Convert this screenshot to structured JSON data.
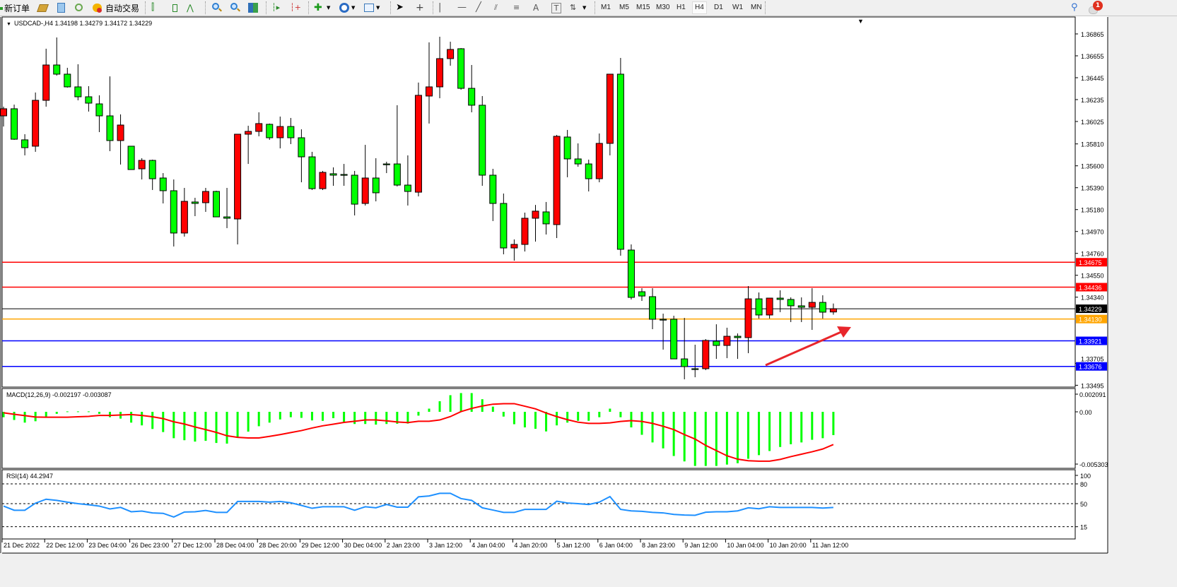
{
  "toolbar": {
    "new_order_label": "新订单",
    "auto_trading_label": "自动交易",
    "timeframes": [
      "M1",
      "M5",
      "M15",
      "M30",
      "H1",
      "H4",
      "D1",
      "W1",
      "MN"
    ],
    "active_timeframe": "H4",
    "notification_count": "1"
  },
  "chart": {
    "header": "USDCAD-,H4  1.34198 1.34279 1.34172 1.34229",
    "colors": {
      "up": "#ff0000",
      "down": "#00ff00",
      "outline": "#000000",
      "background": "#ffffff"
    },
    "price_ticks": [
      "1.36865",
      "1.36655",
      "1.36445",
      "1.36235",
      "1.36025",
      "1.35810",
      "1.35600",
      "1.35390",
      "1.35180",
      "1.34970",
      "1.34760",
      "1.34550",
      "1.34340",
      "1.33705",
      "1.33495"
    ],
    "levels": [
      {
        "price": 1.34675,
        "label": "1.34675",
        "color": "#ff0000"
      },
      {
        "price": 1.34436,
        "label": "1.34436",
        "color": "#ff0000"
      },
      {
        "price": 1.34229,
        "label": "1.34229",
        "color": "#000000"
      },
      {
        "price": 1.3413,
        "label": "1.34130",
        "color": "#ffa500"
      },
      {
        "price": 1.33921,
        "label": "1.33921",
        "color": "#0000ff"
      },
      {
        "price": 1.33676,
        "label": "1.33676",
        "color": "#0000ff"
      }
    ],
    "arrow_color": "#e8262b",
    "candles_ohlc": [
      [
        1.36079,
        1.36167,
        1.35977,
        1.36147
      ],
      [
        1.36147,
        1.36187,
        1.35849,
        1.35855
      ],
      [
        1.35849,
        1.35903,
        1.357,
        1.35774
      ],
      [
        1.35788,
        1.36303,
        1.35734,
        1.36228
      ],
      [
        1.36228,
        1.36723,
        1.36167,
        1.36567
      ],
      [
        1.36567,
        1.36831,
        1.36465,
        1.36479
      ],
      [
        1.36479,
        1.3654,
        1.3635,
        1.36357
      ],
      [
        1.36357,
        1.36574,
        1.36228,
        1.36262
      ],
      [
        1.36262,
        1.36364,
        1.3612,
        1.36201
      ],
      [
        1.36194,
        1.36276,
        1.35923,
        1.36079
      ],
      [
        1.36079,
        1.36458,
        1.3574,
        1.35842
      ],
      [
        1.35842,
        1.36093,
        1.35612,
        1.35991
      ],
      [
        1.35788,
        1.35788,
        1.35564,
        1.35564
      ],
      [
        1.35571,
        1.35673,
        1.35469,
        1.35652
      ],
      [
        1.35652,
        1.35659,
        1.35368,
        1.35476
      ],
      [
        1.35483,
        1.3553,
        1.35239,
        1.35361
      ],
      [
        1.35361,
        1.35469,
        1.34826,
        1.34955
      ],
      [
        1.34955,
        1.35388,
        1.34921,
        1.35259
      ],
      [
        1.35253,
        1.35293,
        1.35117,
        1.35239
      ],
      [
        1.35246,
        1.35388,
        1.35158,
        1.35354
      ],
      [
        1.35354,
        1.35361,
        1.3511,
        1.3511
      ],
      [
        1.3511,
        1.35388,
        1.35002,
        1.35097
      ],
      [
        1.3509,
        1.35903,
        1.34846,
        1.35903
      ],
      [
        1.35903,
        1.35984,
        1.35618,
        1.3593
      ],
      [
        1.3593,
        1.36113,
        1.35883,
        1.36005
      ],
      [
        1.35998,
        1.36005,
        1.35849,
        1.35869
      ],
      [
        1.35869,
        1.36072,
        1.35767,
        1.35977
      ],
      [
        1.35977,
        1.36059,
        1.35808,
        1.35869
      ],
      [
        1.35869,
        1.3595,
        1.35442,
        1.35686
      ],
      [
        1.35686,
        1.35734,
        1.35368,
        1.35381
      ],
      [
        1.35381,
        1.35551,
        1.35368,
        1.35537
      ],
      [
        1.35524,
        1.35585,
        1.35408,
        1.3551
      ],
      [
        1.35517,
        1.35618,
        1.35408,
        1.35515
      ],
      [
        1.3551,
        1.35551,
        1.35124,
        1.35232
      ],
      [
        1.35239,
        1.35801,
        1.35219,
        1.35483
      ],
      [
        1.35483,
        1.35673,
        1.35259,
        1.35341
      ],
      [
        1.35618,
        1.35639,
        1.3553,
        1.35612
      ],
      [
        1.35618,
        1.36181,
        1.35402,
        1.35415
      ],
      [
        1.35415,
        1.357,
        1.35219,
        1.35354
      ],
      [
        1.35347,
        1.36398,
        1.35307,
        1.36276
      ],
      [
        1.36269,
        1.36784,
        1.36005,
        1.36357
      ],
      [
        1.36357,
        1.36838,
        1.36248,
        1.36628
      ],
      [
        1.36628,
        1.3679,
        1.3656,
        1.36716
      ],
      [
        1.36723,
        1.36729,
        1.3633,
        1.36343
      ],
      [
        1.36343,
        1.36567,
        1.36113,
        1.36181
      ],
      [
        1.36181,
        1.36269,
        1.35408,
        1.3551
      ],
      [
        1.3551,
        1.35571,
        1.3507,
        1.35239
      ],
      [
        1.35239,
        1.35334,
        1.34751,
        1.34812
      ],
      [
        1.34812,
        1.34894,
        1.3469,
        1.34846
      ],
      [
        1.34846,
        1.35151,
        1.34778,
        1.35097
      ],
      [
        1.35097,
        1.35225,
        1.34873,
        1.35165
      ],
      [
        1.35158,
        1.35253,
        1.34941,
        1.35043
      ],
      [
        1.35036,
        1.35896,
        1.34907,
        1.35883
      ],
      [
        1.35876,
        1.35944,
        1.3549,
        1.35666
      ],
      [
        1.35666,
        1.35815,
        1.35591,
        1.35618
      ],
      [
        1.35618,
        1.35659,
        1.35354,
        1.35476
      ],
      [
        1.35476,
        1.3591,
        1.35442,
        1.35815
      ],
      [
        1.35815,
        1.36479,
        1.357,
        1.36479
      ],
      [
        1.36479,
        1.36635,
        1.34738,
        1.34799
      ],
      [
        1.34792,
        1.34846,
        1.34318,
        1.34338
      ],
      [
        1.34392,
        1.34426,
        1.34304,
        1.34351
      ],
      [
        1.34345,
        1.34426,
        1.34033,
        1.34128
      ],
      [
        1.34128,
        1.34182,
        1.33837,
        1.34121
      ],
      [
        1.34128,
        1.34162,
        1.33748,
        1.33748
      ],
      [
        1.33748,
        1.34141,
        1.33552,
        1.33674
      ],
      [
        1.33654,
        1.33884,
        1.33572,
        1.33652
      ],
      [
        1.33654,
        1.33938,
        1.3364,
        1.33925
      ],
      [
        1.33918,
        1.3408,
        1.33748,
        1.33877
      ],
      [
        1.33877,
        1.34047,
        1.33755,
        1.33965
      ],
      [
        1.33965,
        1.33992,
        1.33748,
        1.33952
      ],
      [
        1.33952,
        1.34446,
        1.33803,
        1.34324
      ],
      [
        1.34324,
        1.34385,
        1.34135,
        1.34169
      ],
      [
        1.34169,
        1.34331,
        1.34135,
        1.34331
      ],
      [
        1.34331,
        1.34406,
        1.34196,
        1.34318
      ],
      [
        1.34318,
        1.34338,
        1.34101,
        1.34257
      ],
      [
        1.34257,
        1.34338,
        1.34101,
        1.34243
      ],
      [
        1.34243,
        1.34426,
        1.34026,
        1.3429
      ],
      [
        1.3429,
        1.34358,
        1.34135,
        1.34196
      ],
      [
        1.34198,
        1.34279,
        1.34172,
        1.34229
      ]
    ],
    "time_labels": [
      "21 Dec 2022",
      "22 Dec 12:00",
      "23 Dec 04:00",
      "26 Dec 23:00",
      "27 Dec 12:00",
      "28 Dec 04:00",
      "28 Dec 20:00",
      "29 Dec 12:00",
      "30 Dec 04:00",
      "2 Jan 23:00",
      "3 Jan 12:00",
      "4 Jan 04:00",
      "4 Jan 20:00",
      "5 Jan 12:00",
      "6 Jan 04:00",
      "8 Jan 23:00",
      "9 Jan 12:00",
      "10 Jan 04:00",
      "10 Jan 20:00",
      "11 Jan 12:00"
    ]
  },
  "macd": {
    "header": "MACD(12,26,9) -0.002197 -0.003087",
    "axis_labels": [
      "0.002091",
      "0.00",
      "-0.005303"
    ],
    "range": [
      -0.005303,
      0.002091
    ],
    "histogram_color": "#00ff00",
    "signal_color": "#ff0000",
    "histogram": [
      -0.00051,
      -0.00077,
      -0.00102,
      -0.00089,
      -0.00051,
      -0.00019,
      4e-05,
      4e-05,
      4e-05,
      -0.00019,
      -0.00051,
      -0.00064,
      -0.00102,
      -0.00128,
      -0.00162,
      -0.00191,
      -0.00249,
      -0.00268,
      -0.00281,
      -0.00274,
      -0.00294,
      -0.003,
      -0.00243,
      -0.00187,
      -0.00136,
      -0.00102,
      -0.00072,
      -0.00051,
      -0.00057,
      -0.00081,
      -0.00085,
      -0.0006,
      -0.00098,
      -0.00115,
      -0.00115,
      -0.00121,
      -0.00115,
      -0.00113,
      -0.00111,
      -0.00036,
      0.0003,
      0.001,
      0.00157,
      0.00177,
      0.00177,
      0.00119,
      0.00049,
      -0.00045,
      -0.00117,
      -0.00147,
      -0.0016,
      -0.00185,
      -0.00128,
      -0.00102,
      -0.00085,
      -0.00085,
      -0.00051,
      0.0003,
      -0.00051,
      -0.00147,
      -0.00217,
      -0.00289,
      -0.00345,
      -0.00417,
      -0.00468,
      -0.00511,
      -0.00511,
      -0.00511,
      -0.00498,
      -0.00485,
      -0.00443,
      -0.00409,
      -0.0037,
      -0.00332,
      -0.00306,
      -0.00289,
      -0.00264,
      -0.00249,
      -0.002197
    ],
    "signal": [
      -9e-05,
      -0.00023,
      -0.00036,
      -0.00049,
      -0.00051,
      -0.00051,
      -0.00051,
      -0.00047,
      -0.00043,
      -0.00034,
      -0.00034,
      -0.0003,
      -0.00026,
      -0.00034,
      -0.00047,
      -0.00064,
      -0.00094,
      -0.00115,
      -0.00143,
      -0.00168,
      -0.00194,
      -0.00226,
      -0.00241,
      -0.00247,
      -0.00247,
      -0.00232,
      -0.00215,
      -0.00196,
      -0.00177,
      -0.00153,
      -0.00132,
      -0.00117,
      -0.001,
      -0.00089,
      -0.00077,
      -0.00077,
      -0.00085,
      -0.00096,
      -0.00102,
      -0.00089,
      -0.00089,
      -0.00077,
      -0.00045,
      2e-05,
      0.00032,
      0.00055,
      0.00072,
      0.00077,
      0.00077,
      0.00053,
      0.00028,
      -0.00011,
      -0.00045,
      -0.00074,
      -0.00098,
      -0.00109,
      -0.00109,
      -0.00104,
      -0.00091,
      -0.00083,
      -0.00091,
      -0.00109,
      -0.00136,
      -0.00168,
      -0.00215,
      -0.00257,
      -0.00317,
      -0.00366,
      -0.00415,
      -0.00447,
      -0.00462,
      -0.00466,
      -0.00466,
      -0.00449,
      -0.00423,
      -0.004,
      -0.00377,
      -0.00351,
      -0.003087
    ]
  },
  "rsi": {
    "header": "RSI(14) 44.2947",
    "axis_labels": [
      "100",
      "80",
      "50",
      "15"
    ],
    "levels": [
      80,
      50,
      15
    ],
    "line_color": "#1e90ff",
    "values": [
      46.3,
      40,
      40,
      50.7,
      56.7,
      55,
      52.3,
      50,
      48.3,
      46.3,
      42,
      44.3,
      37.7,
      38.7,
      36,
      35.3,
      29.7,
      37.3,
      37.7,
      39.7,
      36.7,
      36.7,
      53.3,
      53.3,
      53.3,
      52.3,
      53.3,
      51.3,
      47.3,
      43,
      45.3,
      45.3,
      45.3,
      40,
      45.3,
      43.7,
      48.7,
      44.7,
      44.7,
      60.3,
      61.7,
      65.7,
      65.7,
      57.7,
      55,
      43.7,
      40.3,
      36.7,
      36.7,
      41.3,
      41.3,
      41.3,
      53.7,
      51,
      50,
      48.7,
      52.3,
      60.7,
      41.3,
      39,
      38.3,
      36.7,
      36,
      33.7,
      32.7,
      32.3,
      37,
      37.7,
      37.7,
      39,
      43.7,
      42.3,
      45.3,
      44.3,
      44.3,
      44.3,
      44.3,
      43.3,
      44.2947
    ]
  }
}
